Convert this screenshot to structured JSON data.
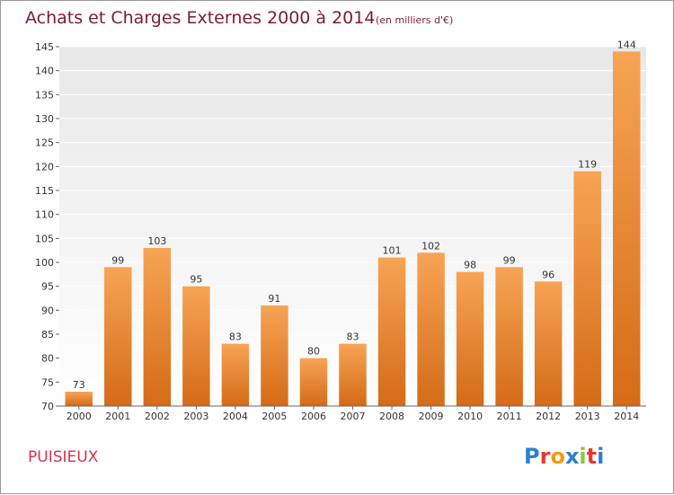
{
  "title": "Achats et Charges Externes 2000 à 2014",
  "subtitle": "(en milliers d'€)",
  "place": "PUISIEUX",
  "brand": {
    "letters": [
      "P",
      "r",
      "o",
      "x",
      "i",
      "t",
      "i"
    ],
    "colors": [
      "#2e7fd0",
      "#e53935",
      "#f39c12",
      "#2e7fd0",
      "#8dc63f",
      "#e53935",
      "#2e7fd0"
    ]
  },
  "colors": {
    "bar_light": "#f7a455",
    "bar_dark": "#d46b17",
    "plot_bg_top": "#e8e8e8",
    "plot_bg_bottom": "#ffffff",
    "grid": "#ffffff",
    "title": "#7a1d2e",
    "place": "#d6324f"
  },
  "chart_data": {
    "type": "bar",
    "title": "Achats et Charges Externes 2000 à 2014",
    "subtitle": "(en milliers d'€)",
    "categories": [
      "2000",
      "2001",
      "2002",
      "2003",
      "2004",
      "2005",
      "2006",
      "2007",
      "2008",
      "2009",
      "2010",
      "2011",
      "2012",
      "2013",
      "2014"
    ],
    "values": [
      73,
      99,
      103,
      95,
      83,
      91,
      80,
      83,
      101,
      102,
      98,
      99,
      96,
      119,
      144
    ],
    "ylim": [
      70,
      145
    ],
    "yticks": [
      70,
      75,
      80,
      85,
      90,
      95,
      100,
      105,
      110,
      115,
      120,
      125,
      130,
      135,
      140,
      145
    ],
    "grid": true,
    "xlabel": "",
    "ylabel": ""
  }
}
